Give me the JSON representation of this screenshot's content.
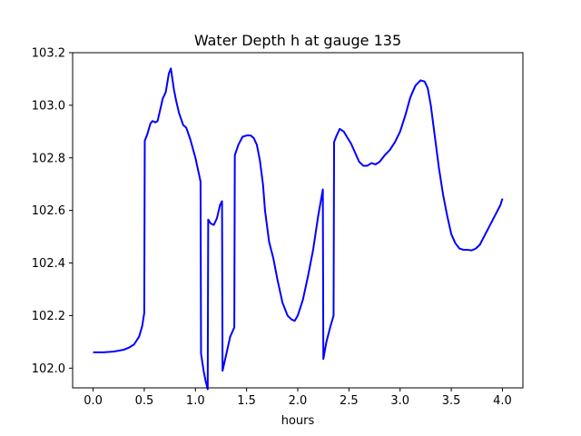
{
  "chart_data": {
    "type": "line",
    "title": "Water Depth h at gauge 135",
    "xlabel": "hours",
    "ylabel": "",
    "xlim": [
      -0.2,
      4.2
    ],
    "ylim": [
      101.925,
      103.2
    ],
    "xticks": [
      0.0,
      0.5,
      1.0,
      1.5,
      2.0,
      2.5,
      3.0,
      3.5,
      4.0
    ],
    "xtick_labels": [
      "0.0",
      "0.5",
      "1.0",
      "1.5",
      "2.0",
      "2.5",
      "3.0",
      "3.5",
      "4.0"
    ],
    "yticks": [
      102.0,
      102.2,
      102.4,
      102.6,
      102.8,
      103.0,
      103.2
    ],
    "ytick_labels": [
      "102.0",
      "102.2",
      "102.4",
      "102.6",
      "102.8",
      "103.0",
      "103.2"
    ],
    "grid": false,
    "legend": "none",
    "series": [
      {
        "color": "#0000ff",
        "x": [
          0.0,
          0.1,
          0.2,
          0.3,
          0.35,
          0.4,
          0.45,
          0.48,
          0.5,
          0.505,
          0.53,
          0.56,
          0.58,
          0.61,
          0.63,
          0.66,
          0.68,
          0.71,
          0.74,
          0.76,
          0.79,
          0.81,
          0.84,
          0.88,
          0.91,
          0.95,
          1.0,
          1.05,
          1.055,
          1.08,
          1.1,
          1.12,
          1.125,
          1.15,
          1.18,
          1.21,
          1.24,
          1.26,
          1.265,
          1.3,
          1.34,
          1.38,
          1.385,
          1.42,
          1.46,
          1.5,
          1.54,
          1.57,
          1.6,
          1.63,
          1.66,
          1.68,
          1.72,
          1.76,
          1.8,
          1.85,
          1.9,
          1.94,
          1.97,
          2.0,
          2.05,
          2.1,
          2.15,
          2.2,
          2.245,
          2.25,
          2.28,
          2.32,
          2.35,
          2.355,
          2.38,
          2.41,
          2.45,
          2.48,
          2.52,
          2.56,
          2.6,
          2.64,
          2.68,
          2.72,
          2.76,
          2.8,
          2.85,
          2.9,
          2.95,
          3.0,
          3.05,
          3.1,
          3.15,
          3.2,
          3.24,
          3.27,
          3.3,
          3.34,
          3.38,
          3.42,
          3.46,
          3.5,
          3.54,
          3.58,
          3.62,
          3.66,
          3.7,
          3.74,
          3.78,
          3.82,
          3.86,
          3.9,
          3.94,
          3.98,
          4.0
        ],
        "y": [
          102.06,
          102.06,
          102.063,
          102.07,
          102.078,
          102.09,
          102.12,
          102.16,
          102.21,
          102.865,
          102.89,
          102.93,
          102.94,
          102.935,
          102.94,
          102.99,
          103.025,
          103.05,
          103.12,
          103.14,
          103.06,
          103.02,
          102.97,
          102.925,
          102.915,
          102.87,
          102.8,
          102.71,
          102.055,
          101.99,
          101.95,
          101.92,
          102.565,
          102.55,
          102.545,
          102.57,
          102.62,
          102.635,
          101.99,
          102.05,
          102.12,
          102.155,
          102.81,
          102.85,
          102.88,
          102.885,
          102.885,
          102.875,
          102.85,
          102.79,
          102.7,
          102.6,
          102.48,
          102.42,
          102.34,
          102.25,
          102.2,
          102.185,
          102.18,
          102.2,
          102.26,
          102.35,
          102.45,
          102.58,
          102.68,
          102.035,
          102.1,
          102.16,
          102.2,
          102.86,
          102.885,
          102.91,
          102.9,
          102.88,
          102.855,
          102.82,
          102.785,
          102.77,
          102.77,
          102.78,
          102.775,
          102.785,
          102.81,
          102.83,
          102.86,
          102.9,
          102.96,
          103.03,
          103.075,
          103.095,
          103.09,
          103.065,
          103.0,
          102.88,
          102.76,
          102.66,
          102.58,
          102.51,
          102.475,
          102.455,
          102.45,
          102.45,
          102.448,
          102.455,
          102.47,
          102.5,
          102.53,
          102.56,
          102.59,
          102.62,
          102.645
        ]
      }
    ]
  }
}
